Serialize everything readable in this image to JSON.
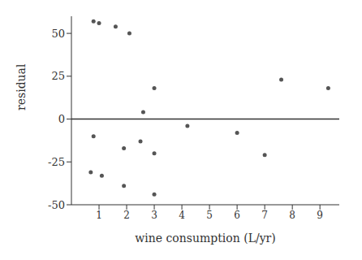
{
  "chart_data": {
    "type": "scatter",
    "x_label": "wine consumption (L/yr)",
    "y_label": "residual",
    "x": [
      0.8,
      1.0,
      1.6,
      2.1,
      0.8,
      0.7,
      1.1,
      1.9,
      1.9,
      2.5,
      3.0,
      3.0,
      3.0,
      2.6,
      4.2,
      6.0,
      7.0,
      7.6,
      9.3
    ],
    "values": [
      57,
      56,
      54,
      50,
      -10,
      -31,
      -33,
      -17,
      -39,
      -13,
      -20,
      -44,
      18,
      4,
      -4,
      -8,
      -21,
      23,
      18
    ],
    "xlim": [
      0,
      9.7
    ],
    "ylim": [
      -50,
      60
    ],
    "xticks": [
      1,
      2,
      3,
      4,
      5,
      6,
      7,
      8,
      9
    ],
    "yticks": [
      -50,
      -25,
      0,
      25,
      50
    ],
    "hline": 0,
    "color": "#555555",
    "grid": false
  }
}
